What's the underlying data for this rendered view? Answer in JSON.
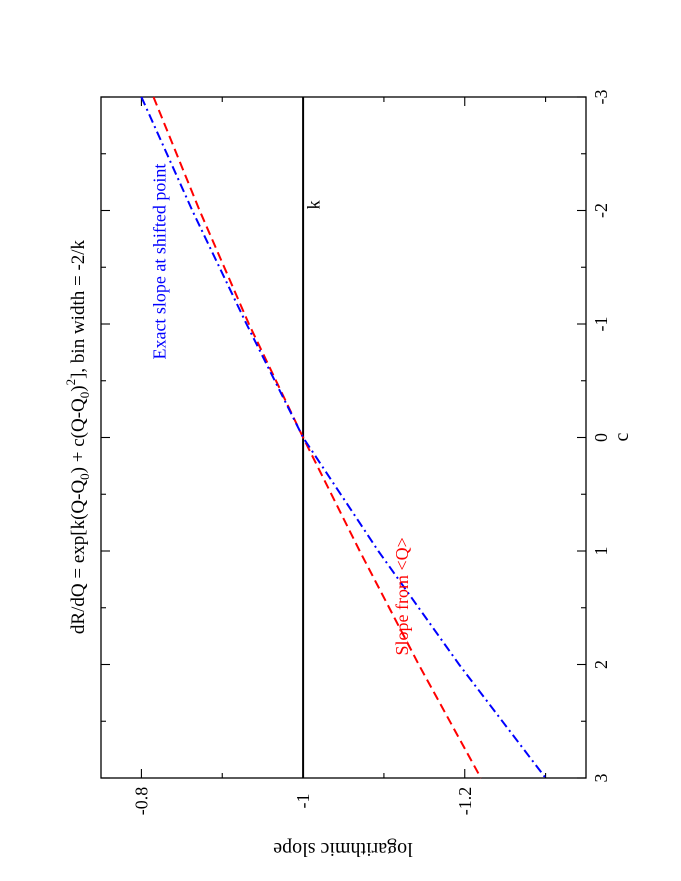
{
  "chart_data": {
    "type": "line",
    "title": "dR/dQ = exp[k(Q-Q₀) + c(Q-Q₀)²], bin width = -2/k",
    "title_parts": {
      "p1": "dR/dQ = exp[k(Q-Q",
      "s1": "0",
      "p2": ") + c(Q-Q",
      "s2": "0",
      "p3": ")",
      "sup": "2",
      "p4": "], bin width = -2/k"
    },
    "xlabel": "c",
    "ylabel": "logarithmic slope",
    "xlim": [
      -3,
      3
    ],
    "ylim": [
      -1.35,
      -0.75
    ],
    "x_ticks": [
      -3,
      -2,
      -1,
      0,
      1,
      2,
      3
    ],
    "x_tick_labels": [
      "-3",
      "-2",
      "-1",
      "0",
      "1",
      "2",
      "3"
    ],
    "y_ticks": [
      -0.8,
      -1.0,
      -1.2
    ],
    "y_tick_labels": [
      "-0.8",
      "-1",
      "-1.2"
    ],
    "grid": false,
    "orientation": "rotated 90 degrees counter-clockwise",
    "series": [
      {
        "name": "k",
        "style": "solid",
        "color": "#000000",
        "x": [
          -3,
          -2,
          -1,
          0,
          1,
          2,
          3
        ],
        "y": [
          -1.0,
          -1.0,
          -1.0,
          -1.0,
          -1.0,
          -1.0,
          -1.0
        ]
      },
      {
        "name": "Slope from <Q>",
        "style": "dashed",
        "color": "#ff0000",
        "x": [
          -3,
          -2,
          -1,
          0,
          1,
          2,
          3
        ],
        "y": [
          -0.815,
          -0.872,
          -0.933,
          -1.0,
          -1.07,
          -1.143,
          -1.22
        ]
      },
      {
        "name": "Exact slope at shifted point",
        "style": "dash-dot",
        "color": "#0000ff",
        "x": [
          -3,
          -2,
          -1,
          0,
          1,
          2,
          3
        ],
        "y": [
          -0.8,
          -0.863,
          -0.93,
          -1.0,
          -1.093,
          -1.193,
          -1.3
        ]
      }
    ],
    "annotations": [
      {
        "text": "k",
        "x": -2.05,
        "y": -1.02,
        "color": "#000000"
      },
      {
        "text": "Slope from <Q>",
        "x": 1.4,
        "y": -1.13,
        "color": "#ff0000"
      },
      {
        "text": "Exact slope at shifted point",
        "x": -1.55,
        "y": -0.83,
        "color": "#0000ff"
      }
    ]
  }
}
